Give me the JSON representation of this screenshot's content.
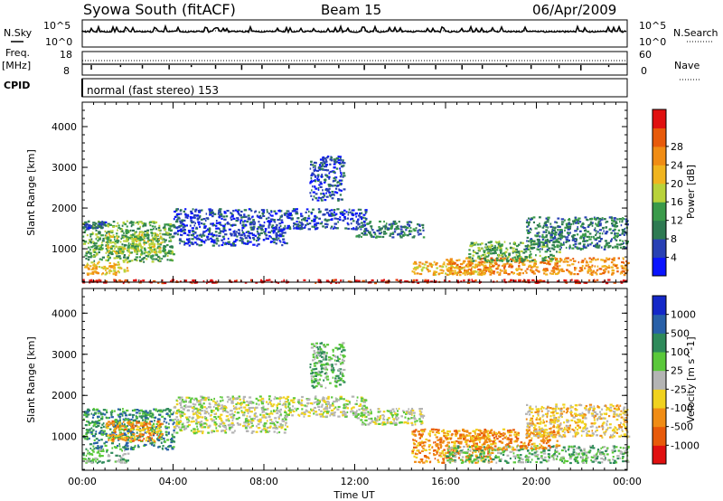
{
  "header": {
    "station": "Syowa South (fitACF)",
    "beam": "Beam 15",
    "date": "06/Apr/2009"
  },
  "top_panels": {
    "nsky_label": "N.Sky",
    "nsearch_label": "N.Search",
    "noise_ticks_left": [
      "10^5",
      "10^0"
    ],
    "noise_ticks_right": [
      "10^5",
      "10^0"
    ],
    "freq_label_1": "Freq.",
    "freq_label_2": "[MHz]",
    "freq_ticks": [
      "18",
      "8"
    ],
    "nave_label": "Nave",
    "nave_ticks": [
      "60",
      "0"
    ],
    "cpid_label": "CPID",
    "cpid_value": "normal (fast stereo) 153"
  },
  "colors": {
    "power_scale": [
      "#0a14ff",
      "#2840b4",
      "#2e7a52",
      "#3a9a4a",
      "#b8d23a",
      "#f0b41e",
      "#f08c14",
      "#e85a0a",
      "#e01010"
    ],
    "velocity_scale": [
      "#1428c8",
      "#2860a8",
      "#2e8a5a",
      "#5ac83a",
      "#b4b4b4",
      "#f0d21e",
      "#f08c14",
      "#e85a0a",
      "#e01010"
    ]
  },
  "chart_data": [
    {
      "type": "heatmap",
      "title": "",
      "xlabel": "Time UT",
      "ylabel": "Slant Range [km]",
      "x_ticks": [
        "00:00",
        "04:00",
        "08:00",
        "12:00",
        "16:00",
        "20:00",
        "00:00"
      ],
      "y_ticks": [
        "1000",
        "2000",
        "3000",
        "4000"
      ],
      "ylim": [
        180,
        4600
      ],
      "colorbar_label": "Power [dB]",
      "colorbar_ticks": [
        "4",
        "8",
        "12",
        "16",
        "20",
        "24",
        "28"
      ],
      "value_range": [
        0,
        30
      ],
      "scatter_bands": [
        {
          "t": [
            0.0,
            2.0
          ],
          "r": [
            380,
            700
          ],
          "level": 5
        },
        {
          "t": [
            0.0,
            4.0
          ],
          "r": [
            700,
            1700
          ],
          "level": 3
        },
        {
          "t": [
            0.0,
            1.0
          ],
          "r": [
            1500,
            1700
          ],
          "level": 1
        },
        {
          "t": [
            1.0,
            3.5
          ],
          "r": [
            900,
            1400
          ],
          "level": 4
        },
        {
          "t": [
            4.0,
            9.0
          ],
          "r": [
            1100,
            2000
          ],
          "level": 1
        },
        {
          "t": [
            9.0,
            12.5
          ],
          "r": [
            1500,
            2000
          ],
          "level": 1
        },
        {
          "t": [
            10.0,
            11.5
          ],
          "r": [
            2200,
            3300
          ],
          "level": 1
        },
        {
          "t": [
            12.0,
            15.0
          ],
          "r": [
            1300,
            1700
          ],
          "level": 2
        },
        {
          "t": [
            14.5,
            18.0
          ],
          "r": [
            380,
            700
          ],
          "level": 5
        },
        {
          "t": [
            16.0,
            24.0
          ],
          "r": [
            380,
            800
          ],
          "level": 6
        },
        {
          "t": [
            17.0,
            21.0
          ],
          "r": [
            700,
            1200
          ],
          "level": 3
        },
        {
          "t": [
            19.5,
            24.0
          ],
          "r": [
            1000,
            1800
          ],
          "level": 2
        },
        {
          "t": [
            0.0,
            24.0
          ],
          "r": [
            180,
            260
          ],
          "level": 8
        }
      ]
    },
    {
      "type": "heatmap",
      "title": "",
      "xlabel": "Time UT",
      "ylabel": "Slant Range [km]",
      "x_ticks": [
        "00:00",
        "04:00",
        "08:00",
        "12:00",
        "16:00",
        "20:00",
        "00:00"
      ],
      "y_ticks": [
        "1000",
        "2000",
        "3000",
        "4000"
      ],
      "ylim": [
        180,
        4600
      ],
      "colorbar_label": "Velocity [m s^-1]",
      "colorbar_ticks": [
        "1000",
        "500",
        "100",
        "25",
        "-25",
        "-100",
        "-500",
        "-1000"
      ],
      "value_range": [
        -1000,
        1000
      ],
      "scatter_bands": [
        {
          "t": [
            0.0,
            2.0
          ],
          "r": [
            380,
            700
          ],
          "level": 3
        },
        {
          "t": [
            0.0,
            4.0
          ],
          "r": [
            700,
            1700
          ],
          "level": 2
        },
        {
          "t": [
            1.0,
            3.5
          ],
          "r": [
            900,
            1400
          ],
          "level": 6
        },
        {
          "t": [
            4.0,
            9.0
          ],
          "r": [
            1100,
            2000
          ],
          "level": 4
        },
        {
          "t": [
            9.0,
            12.5
          ],
          "r": [
            1500,
            2000
          ],
          "level": 4
        },
        {
          "t": [
            10.0,
            11.5
          ],
          "r": [
            2200,
            3300
          ],
          "level": 3
        },
        {
          "t": [
            12.0,
            15.0
          ],
          "r": [
            1300,
            1700
          ],
          "level": 4
        },
        {
          "t": [
            14.5,
            18.0
          ],
          "r": [
            380,
            1200
          ],
          "level": 6
        },
        {
          "t": [
            16.0,
            24.0
          ],
          "r": [
            380,
            800
          ],
          "level": 3
        },
        {
          "t": [
            17.0,
            21.0
          ],
          "r": [
            700,
            1200
          ],
          "level": 6
        },
        {
          "t": [
            19.5,
            24.0
          ],
          "r": [
            1000,
            1800
          ],
          "level": 5
        }
      ]
    }
  ]
}
